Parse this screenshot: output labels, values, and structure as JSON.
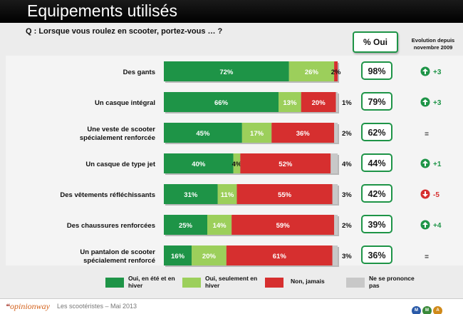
{
  "title": "Equipements utilisés",
  "question": "Q : Lorsque vous roulez en scooter, portez-vous … ?",
  "header": {
    "pct_oui": "% Oui",
    "evolution_line1": "Evolution depuis",
    "evolution_line2": "novembre 2009"
  },
  "chart_data": {
    "type": "bar",
    "orientation": "horizontal",
    "stacked": true,
    "title": "Equipements utilisés",
    "categories": [
      "Des gants",
      "Un casque intégral",
      "Une veste de scooter spécialement renforcée",
      "Un casque de type jet",
      "Des vêtements réfléchissants",
      "Des chaussures renforcées",
      "Un pantalon de scooter spécialement renforcé"
    ],
    "series": [
      {
        "name": "Oui, en été et en hiver",
        "color": "#1e9447",
        "values": [
          72,
          66,
          45,
          40,
          31,
          25,
          16
        ]
      },
      {
        "name": "Oui, seulement en hiver",
        "color": "#9ccf5b",
        "values": [
          26,
          13,
          17,
          4,
          11,
          14,
          20
        ]
      },
      {
        "name": "Non, jamais",
        "color": "#d62f2f",
        "values": [
          2,
          20,
          36,
          52,
          55,
          59,
          61
        ]
      },
      {
        "name": "Ne se prononce pas",
        "color": "#c8c8c8",
        "values": [
          0,
          1,
          2,
          4,
          3,
          2,
          3
        ]
      }
    ],
    "pct_oui": [
      98,
      79,
      62,
      44,
      42,
      39,
      36
    ],
    "evolution": [
      {
        "direction": "up",
        "label": "+3"
      },
      {
        "direction": "up",
        "label": "+3"
      },
      {
        "direction": "flat",
        "label": "="
      },
      {
        "direction": "up",
        "label": "+1"
      },
      {
        "direction": "down",
        "label": "-5"
      },
      {
        "direction": "up",
        "label": "+4"
      },
      {
        "direction": "flat",
        "label": "="
      }
    ],
    "xlim": [
      0,
      100
    ],
    "legend_position": "bottom"
  },
  "colors": {
    "up": "#1e9447",
    "down": "#d62f2f",
    "flat": "#333333"
  },
  "legend": [
    "Oui, en été et en hiver",
    "Oui, seulement en hiver",
    "Non, jamais",
    "Ne se prononce pas"
  ],
  "footer": {
    "brand_quote": "“",
    "brand_name": "opinionway",
    "study": "Les scootéristes – Mai 2013",
    "logo_labels": [
      "M",
      "M",
      "A"
    ]
  }
}
